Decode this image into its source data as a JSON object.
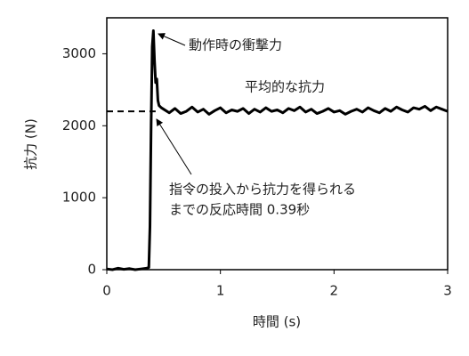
{
  "chart_data": {
    "type": "line",
    "x_label": "時間 (s)",
    "y_label": "抗力 (N)",
    "xlim": [
      0,
      3
    ],
    "xticks": [
      0,
      1,
      2,
      3
    ],
    "ylim": [
      0,
      3500
    ],
    "yticks": [
      0,
      1000,
      2000,
      3000
    ],
    "series": [
      {
        "color": "#000000",
        "x": [
          0,
          0.05,
          0.1,
          0.15,
          0.2,
          0.25,
          0.3,
          0.35,
          0.37,
          0.38,
          0.39,
          0.4,
          0.41,
          0.42,
          0.43,
          0.44,
          0.45,
          0.46,
          0.48,
          0.5,
          0.55,
          0.6,
          0.65,
          0.7,
          0.75,
          0.8,
          0.85,
          0.9,
          0.95,
          1.0,
          1.05,
          1.1,
          1.15,
          1.2,
          1.25,
          1.3,
          1.35,
          1.4,
          1.45,
          1.5,
          1.55,
          1.6,
          1.65,
          1.7,
          1.75,
          1.8,
          1.85,
          1.9,
          1.95,
          2.0,
          2.05,
          2.1,
          2.15,
          2.2,
          2.25,
          2.3,
          2.35,
          2.4,
          2.45,
          2.5,
          2.55,
          2.6,
          2.65,
          2.7,
          2.75,
          2.8,
          2.85,
          2.9,
          2.95,
          3.0
        ],
        "values": [
          10,
          0,
          20,
          5,
          15,
          0,
          10,
          20,
          30,
          600,
          2000,
          3100,
          3320,
          2900,
          2600,
          2650,
          2350,
          2280,
          2250,
          2230,
          2180,
          2240,
          2170,
          2200,
          2260,
          2190,
          2230,
          2160,
          2210,
          2250,
          2180,
          2220,
          2200,
          2240,
          2170,
          2230,
          2190,
          2250,
          2200,
          2220,
          2180,
          2240,
          2210,
          2260,
          2190,
          2230,
          2170,
          2200,
          2240,
          2190,
          2210,
          2160,
          2200,
          2230,
          2190,
          2250,
          2210,
          2180,
          2240,
          2200,
          2260,
          2220,
          2190,
          2250,
          2230,
          2270,
          2210,
          2260,
          2230,
          2200
        ]
      }
    ],
    "hline": {
      "value": 2200,
      "x_range": [
        0,
        0.43
      ]
    },
    "annotations": [
      "動作時の衝撃力",
      "平均的な抗力",
      "指令の投入から抗力を得られる",
      "までの反応時間 0.39秒"
    ]
  }
}
